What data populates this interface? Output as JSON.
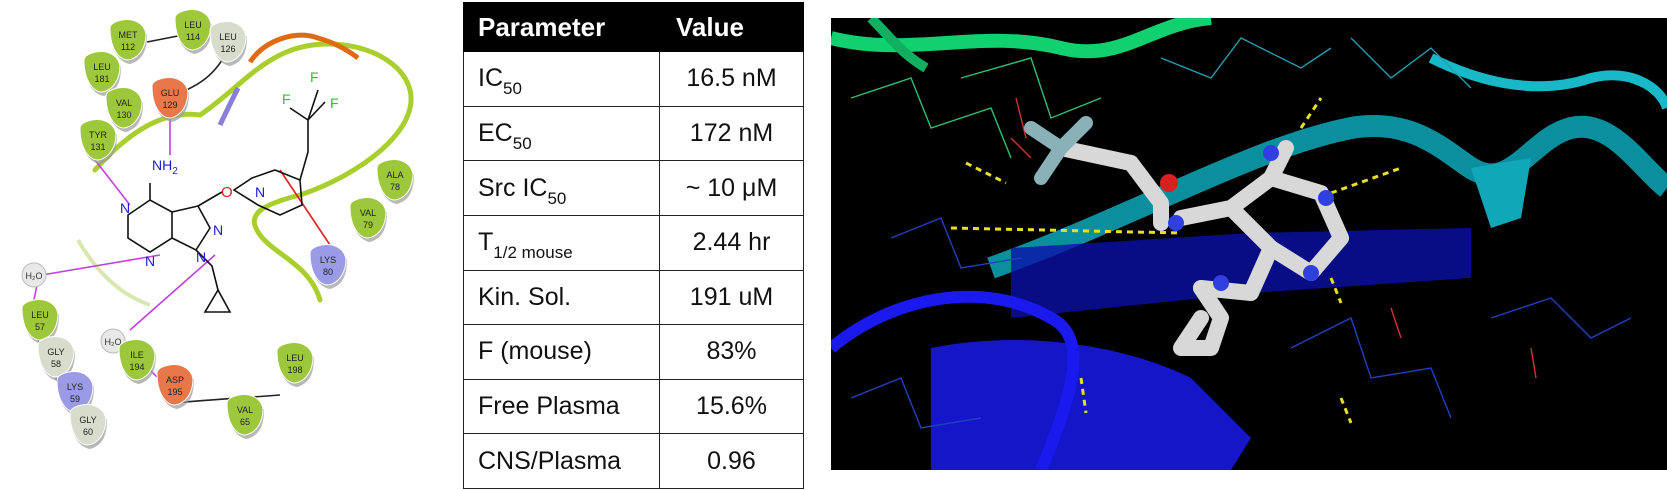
{
  "diagram": {
    "residues": [
      {
        "name": "MET",
        "num": "112"
      },
      {
        "name": "LEU",
        "num": "114"
      },
      {
        "name": "LEU",
        "num": "126"
      },
      {
        "name": "LEU",
        "num": "181"
      },
      {
        "name": "GLU",
        "num": "129"
      },
      {
        "name": "VAL",
        "num": "130"
      },
      {
        "name": "TYR",
        "num": "131"
      },
      {
        "name": "ALA",
        "num": "78"
      },
      {
        "name": "VAL",
        "num": "79"
      },
      {
        "name": "LYS",
        "num": "80"
      },
      {
        "name": "LEU",
        "num": "57"
      },
      {
        "name": "GLY",
        "num": "58"
      },
      {
        "name": "LYS",
        "num": "59"
      },
      {
        "name": "GLY",
        "num": "60"
      },
      {
        "name": "ILE",
        "num": "194"
      },
      {
        "name": "ASP",
        "num": "195"
      },
      {
        "name": "LEU",
        "num": "198"
      },
      {
        "name": "VAL",
        "num": "65"
      }
    ],
    "waters": [
      "H₂O",
      "H₂O"
    ],
    "atoms": {
      "amine": "NH",
      "amine_sub": "2",
      "oxygen": "O",
      "fluorine": "F",
      "nitrogen": "N"
    },
    "colors": {
      "hydrophobic": "#9dc83b",
      "negative": "#e8784a",
      "positive": "#9a9ae6",
      "glycine": "#d8dccc",
      "hbond": "#c040e0",
      "pocket": "#a9cf2e"
    }
  },
  "table": {
    "headers": [
      "Parameter",
      "Value"
    ],
    "rows": [
      {
        "param": "IC",
        "sub": "50",
        "value": "16.5 nM"
      },
      {
        "param": "EC",
        "sub": "50",
        "value": "172 nM"
      },
      {
        "param": "Src IC",
        "sub": "50",
        "value": "~ 10 μM"
      },
      {
        "param": "T",
        "sub": "1/2 mouse",
        "value": "2.44 hr"
      },
      {
        "param": "Kin. Sol.",
        "sub": "",
        "value": "191 uM"
      },
      {
        "param": "F (mouse)",
        "sub": "",
        "value": "83%"
      },
      {
        "param": "Free Plasma",
        "sub": "",
        "value": "15.6%"
      },
      {
        "param": "CNS/Plasma",
        "sub": "",
        "value": "0.96"
      }
    ]
  },
  "structure": {
    "colors": {
      "background": "#000000",
      "ribbon_blue": "#1010d8",
      "ribbon_teal": "#0aa0b0",
      "ribbon_green": "#10d070",
      "ligand": "#d8d8d8",
      "hbond": "#e8e020"
    }
  }
}
